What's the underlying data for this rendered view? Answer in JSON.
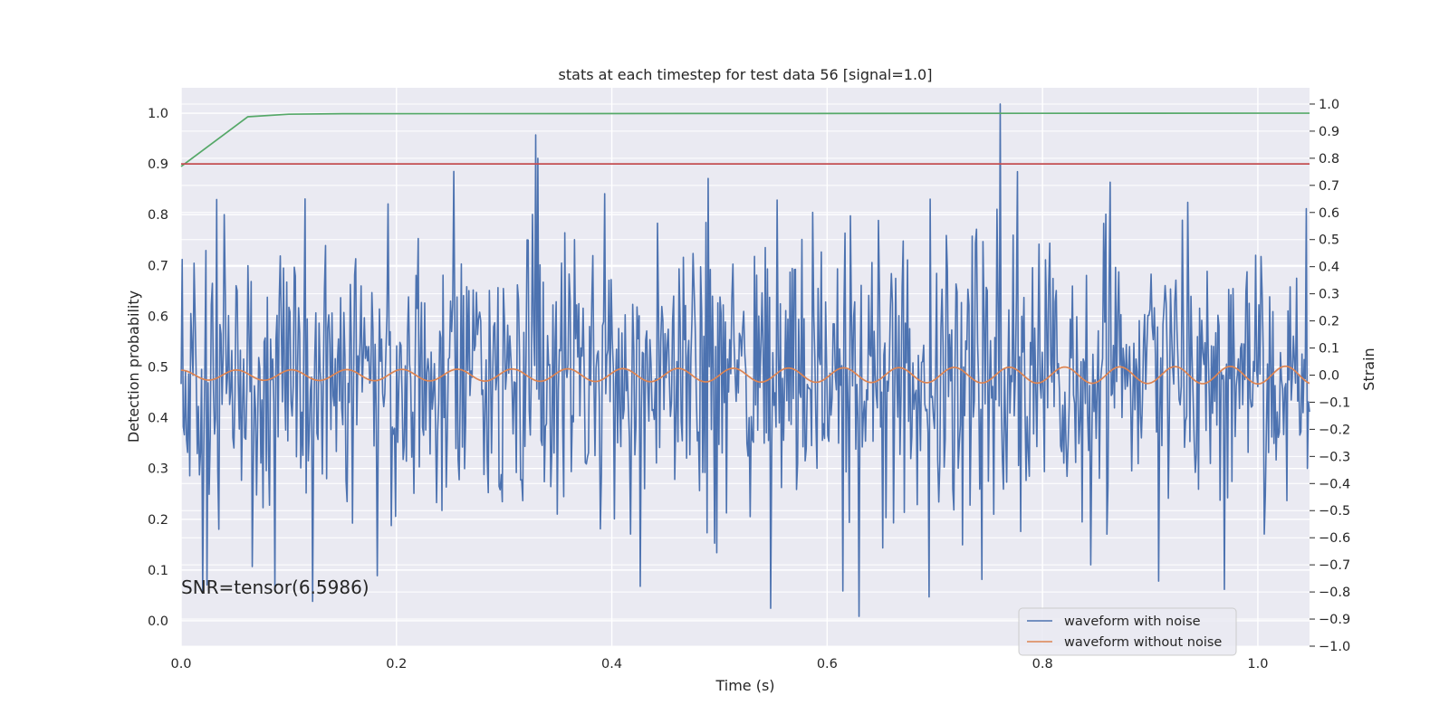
{
  "chart_data": {
    "type": "line",
    "title": "stats at each timestep for test data 56 [signal=1.0]",
    "xlabel": "Time (s)",
    "ylabel_left": "Detection probability",
    "ylabel_right": "Strain",
    "xlim": [
      0.0,
      1.048
    ],
    "ylim_left": [
      -0.05,
      1.05
    ],
    "ylim_right": [
      -1.0,
      1.06
    ],
    "x_ticks": [
      "0.0",
      "0.2",
      "0.4",
      "0.6",
      "0.8",
      "1.0"
    ],
    "y_ticks_left": [
      "0.0",
      "0.1",
      "0.2",
      "0.3",
      "0.4",
      "0.5",
      "0.6",
      "0.7",
      "0.8",
      "0.9",
      "1.0"
    ],
    "y_ticks_right": [
      "−1.0",
      "−0.9",
      "−0.8",
      "−0.7",
      "−0.6",
      "−0.5",
      "−0.4",
      "−0.3",
      "−0.2",
      "−0.1",
      "0.0",
      "0.1",
      "0.2",
      "0.3",
      "0.4",
      "0.5",
      "0.6",
      "0.7",
      "0.8",
      "0.9",
      "1.0"
    ],
    "grid": true,
    "legend_position": "lower-right",
    "annotation": "SNR=tensor(6.5986)",
    "series": [
      {
        "name": "waveform with noise",
        "axis": "right",
        "color": "#4c72b0",
        "kind": "noisy",
        "x_range": [
          0.0,
          1.048
        ],
        "num_points": 1048,
        "y_range": [
          -0.89,
          1.0
        ]
      },
      {
        "name": "waveform without noise",
        "axis": "right",
        "color": "#dd8452",
        "kind": "sinusoid",
        "frequency_hz": 19.5,
        "amplitude_start": 0.018,
        "amplitude_end": 0.033
      },
      {
        "axis": "left",
        "color": "#55a868",
        "kind": "line",
        "x": [
          0.0,
          0.062,
          0.1,
          0.15,
          1.048
        ],
        "y": [
          0.895,
          0.993,
          0.998,
          0.999,
          1.0
        ]
      },
      {
        "axis": "left",
        "color": "#c44e52",
        "kind": "line",
        "x": [
          0.0,
          1.048
        ],
        "y": [
          0.9,
          0.9
        ]
      }
    ]
  }
}
